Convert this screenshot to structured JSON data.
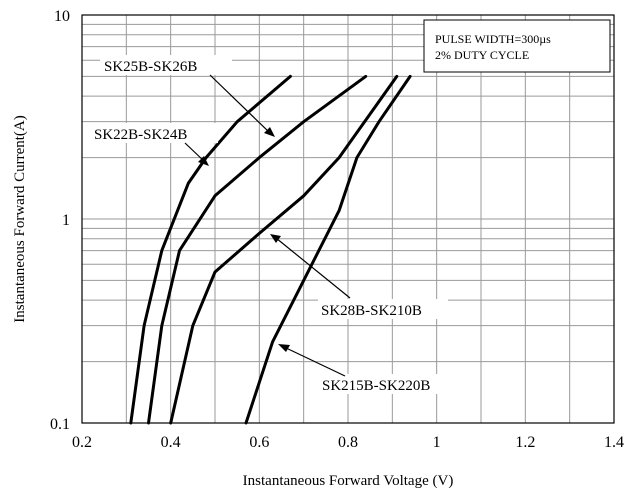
{
  "chart_data": {
    "type": "line",
    "xlabel": "Instantaneous Forward Voltage (V)",
    "ylabel": "Instantaneous Forward Current(A)",
    "xlim": [
      0.2,
      1.4
    ],
    "ylim": [
      0.1,
      10
    ],
    "yscale": "log",
    "x_ticks": [
      "0.2",
      "0.4",
      "0.6",
      "0.8",
      "1",
      "1.2",
      "1.4"
    ],
    "y_ticks": [
      "0.1",
      "1",
      "10"
    ],
    "grid": true,
    "note_lines": [
      "PULSE WIDTH=300µs",
      "2% DUTY CYCLE"
    ],
    "colors": {
      "lines": "#000000",
      "grid": "#9a9a9a",
      "background": "#ffffff"
    },
    "series": [
      {
        "name": "SK22B-SK24B",
        "points": [
          [
            0.31,
            0.1
          ],
          [
            0.34,
            0.3
          ],
          [
            0.38,
            0.7
          ],
          [
            0.44,
            1.5
          ],
          [
            0.48,
            2.0
          ],
          [
            0.55,
            3.0
          ],
          [
            0.67,
            5.0
          ]
        ]
      },
      {
        "name": "SK25B-SK26B",
        "points": [
          [
            0.35,
            0.1
          ],
          [
            0.38,
            0.3
          ],
          [
            0.42,
            0.7
          ],
          [
            0.5,
            1.3
          ],
          [
            0.6,
            2.0
          ],
          [
            0.7,
            3.0
          ],
          [
            0.84,
            5.0
          ]
        ]
      },
      {
        "name": "SK28B-SK210B",
        "points": [
          [
            0.4,
            0.1
          ],
          [
            0.45,
            0.3
          ],
          [
            0.5,
            0.55
          ],
          [
            0.6,
            0.85
          ],
          [
            0.7,
            1.3
          ],
          [
            0.78,
            2.0
          ],
          [
            0.91,
            5.0
          ]
        ]
      },
      {
        "name": "SK215B-SK220B",
        "points": [
          [
            0.57,
            0.1
          ],
          [
            0.63,
            0.25
          ],
          [
            0.7,
            0.5
          ],
          [
            0.78,
            1.1
          ],
          [
            0.82,
            2.0
          ],
          [
            0.87,
            3.0
          ],
          [
            0.94,
            5.0
          ]
        ]
      }
    ]
  }
}
